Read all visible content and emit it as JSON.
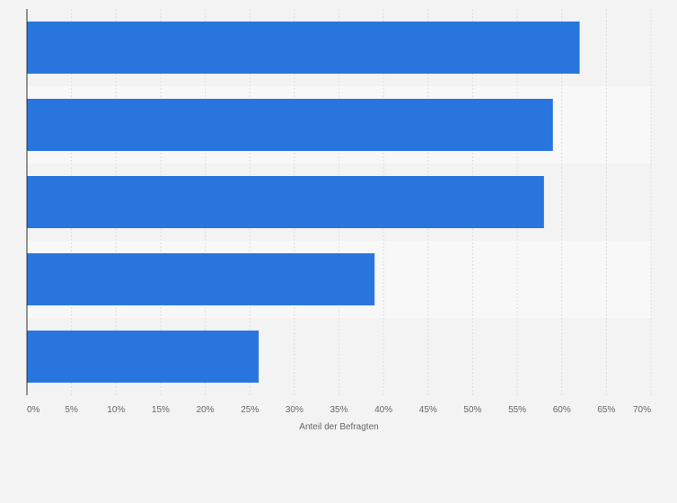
{
  "chart_data": {
    "type": "bar",
    "orientation": "horizontal",
    "categories": [
      "",
      "",
      "",
      "",
      ""
    ],
    "values": [
      62,
      59,
      58,
      39,
      26
    ],
    "xlabel": "Anteil der Befragten",
    "ylabel": "",
    "xlim": [
      0,
      70
    ],
    "x_ticks": [
      0,
      5,
      10,
      15,
      20,
      25,
      30,
      35,
      40,
      45,
      50,
      55,
      60,
      65,
      70
    ],
    "tick_suffix": "%",
    "grid": true,
    "legend": "none",
    "colors": {
      "bar": "#2876dd",
      "background": "#f3f3f3",
      "band_alt": "#f8f8f8",
      "grid": "#dcdcdc",
      "axis": "#333333",
      "text": "#666666"
    }
  }
}
